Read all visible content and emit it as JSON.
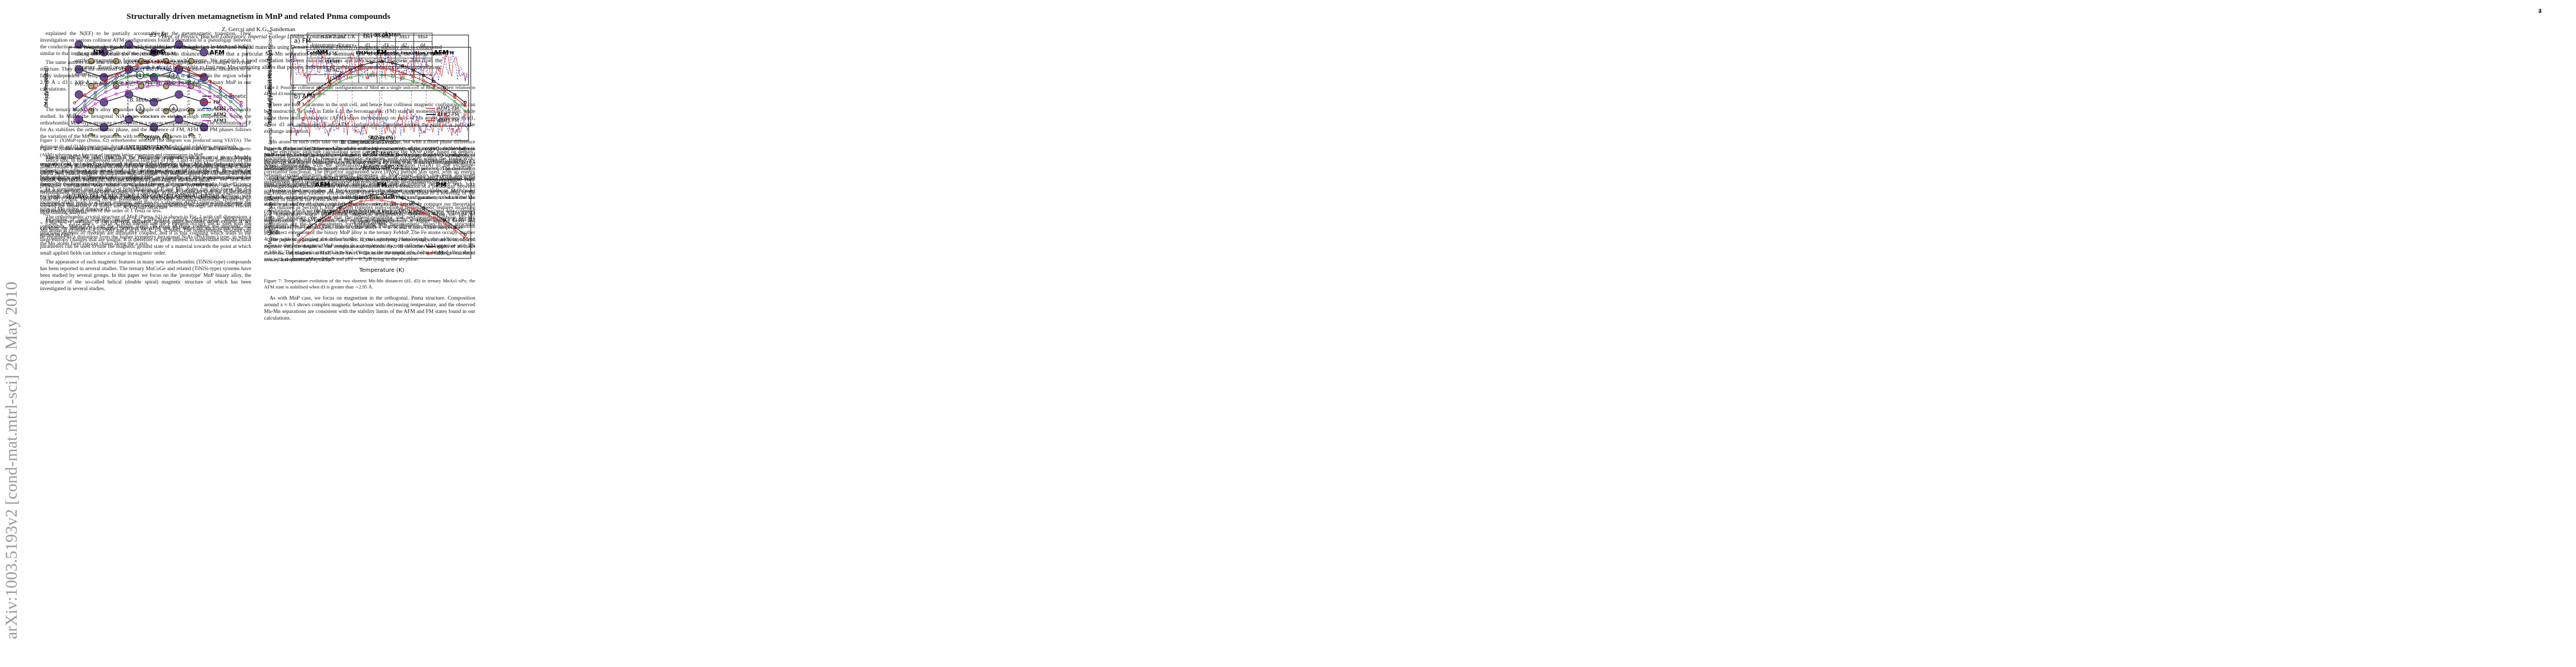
{
  "arxiv_stamp": "arXiv:1003.5193v2 [cond-mat.mtrl-sci] 26 May 2010",
  "front": {
    "title": "Structurally driven metamagnetism in MnP and related Pnma compounds",
    "authors": "Z. Gercsi and K.G. Sandeman",
    "affiliation": "Dept. of Physics, Blackett Laboratory, Imperial College London, London SW7 2AZ UK",
    "abstract": "We investigate the structural conditions for metamagnetism in MnP and related materials using Density Functional Theory. A magnetic stability plot is constructed taking into account the two shortest Mn-Mn distances. We find that a particular Mn-Mn separation plays the dominant role in determining the change from antiferromagnetic to ferromagnetic order in such systems. We establish a good correlation between our calculations and structural and magnetic data from the literature. Based on our approach it should be possible to find new Mn-containing alloys that possess field-induced metamagnetism and associated magnetocaloric effects.",
    "pacs": "PACS numbers: 75.30.Kz,75.30.Et, 71.20.Be, 75.30.Sg"
  },
  "pages": [
    {
      "columns": [
        [
          {
            "section": "I. INTRODUCTION"
          },
          {
            "paragraph": "The magnetocaloric effect (MCE) is the change in temperature of a material in a changing magnetic field, and was first observed in iron by Emil Warburg. It has until now been exploited in paramagnetic salts as a means of cooling below the temperature of liquid Helium. However, the high global warming potential of conventional HFC refrigerants and the increasing demand for energy for cooling are concerns that currently fuel interest in magnetic cooling as a high-efficiency solid-state method of refrigeration close to room temperature. In recent years much of the search for viable room temperature magnetic refrigerants has focused on first order transition metal-rich compounds that possess first order magnetostructural or magnetoelastic phase transitions that can be driven by applied fields of the order of 1 Tesla or less."
          },
          {
            "paragraph": "Examples of such materials include the La(Fe,Si)13 family, Gd5(Si,Ge)4, MnAs-based compounds, MnFe(P,As) and the Heusler alloys. In most of these systems the magnetic and structural degrees of freedom are intimately coupled, and it is this coupling which leads to the large entropy changes that are sought. It is therefore of great interest to understand how structural parameters can be used to tune the magnetic ground state of a material towards the point at which small applied fields can induce a change in magnetic order."
          },
          {
            "paragraph": "The appearance of such magnetic features in many new orthorhombic (TiNiSi-type) compounds has been reported in several studies. The ternary MnCoGe and related (TiNiSi-type) systems have been studied by several groups. In this paper we focus on the 'prototype' MnP binary alloy, the appearance of the so-called helical (double spiral) magnetic structure of which has been investigated in several studies."
          }
        ],
        [
          {
            "paragraph": "Mn atoms in such cells take on the same helical wavevector, but with a fixed phase difference between the pairs. Gribanov and Zavadskii noticed the occurrence of the magnetic double helix in MnP-type phases in the existence of indirect double exchange coupling. Based on an analysis of the energy stability of helimagnetic spin arrangements, Fjellvåg et al. discussed the possibility of a metamagnetic transition in purely carrier localisation with an isotropic pressure. The correlation between crystal structure and magnetic properties in MnP-based alloys has been discussed qualitatively, but a quantitative picture of the relevant exchange interactions is still lacking."
          },
          {
            "paragraph": "Despite extensive studies of the formation of noncollinear magnetic phases in MnP-based materials, no single first-principles study has yet deduced the structural parameters that control the stability of antiferromagnetic and ferromagnetic order. In this article, we compare our theoretical calculations, which we obtain using density functional theory (DFT), with structural data collected from the literature. We show that the nearest-neighbour and next-nearest-neighbour Mn-Mn separations are the key parameters for predicting new metamagnetic alloys in this structural family."
          },
          {
            "paragraph": "The paper is organised as follows: in Sec. II, the underlying Pnma crystal structure is introduced together with the details of our computational methods. Sec. III describes the results of ab-initio electronic calculations on MnP, while Sec. IV discusses the implications of our findings for related ternary and quaternary systems."
          }
        ]
      ]
    },
    {
      "number": "2",
      "columns": [
        [
          {
            "figure": {
              "atom_labels": [
                "1",
                "2",
                "3",
                "4"
              ],
              "colors": [
                "#6b4c9a",
                "#b8a26a"
              ]
            }
          },
          {
            "caption": "Figure 1: (X)MnP-type (Pnma, 62) orthorhombic structure (the diagram was produced using VESTA). The dominant d1 and d3 Mn-interatomic distances are constructed with dashed and solid lines, respectively."
          },
          {
            "paragraph": "based on DFT. We will show that the favourable magnetic structure at a given Mn-Mn separation can be understood through the competition between direct Mn-Mn exchange and the indirect, ligand-mediated interaction. We determine the stability limits of the collinear ferromagnetic and antiferromagnetic configurations as a function of lattice strain, and compare them with the experimentally reported structures of binary and ternary compounds."
          },
          {
            "section": "II. CRYSTAL STRUCTURE AND COMPUTATIONAL DETAILS"
          },
          {
            "subsection": "A. Crystal Structure"
          },
          {
            "paragraph": "The orthorhombic crystal structure of MnP (Pnma, 62) is shown in Fig. 1 with cell dimensions a = 5.268, b = 3.172 and c = 5.918 Å. Both the Mn and the P element occupy the 4c sites with the Mn atoms at (0.0049, 1/4, 0.1965) and P at (0.1878, 1/4, 0.5686). The orthorhombic structure can be regarded as a distortion from the higher symmetry hexagonal NiAs (P63/mmc) type, in which the Mn atoms form zig-zag chains along the a axis."
          }
        ],
        [
          {
            "table": {
              "header": [
                "Base atoms",
                "Mn1",
                "Mn2",
                "Mn3",
                "Mn4"
              ],
              "rows": [
                [
                  "Interatomic distance",
                  "d1",
                  "d3",
                  "d2",
                  "d4"
                ],
                [
                  "FM",
                  "+",
                  "+",
                  "+",
                  "+"
                ],
                [
                  "AFM1",
                  "+",
                  "-",
                  "+",
                  "-"
                ],
                [
                  "AFM2",
                  "+",
                  "+",
                  "-",
                  "-"
                ],
                [
                  "AFM3",
                  "+",
                  "-",
                  "-",
                  "+"
                ]
              ]
            }
          },
          {
            "caption": "Table I: Possible collinear magnetic configurations of Mn4 on a single unit cell of MnP and their relation to d1 and d3 interatomic distances."
          },
          {
            "paragraph": "There are four Mn atoms in the unit cell, and hence four collinear magnetic configurations can be constructed, as listed in Table I. In the ferromagnetic (FM) state all moments are parallel, while in the three antiferromagnetic (AFM) states the moments on pairs of Mn atoms separated by d1, d2 or d3 are antiparallel. Each AFM configuration therefore probes the sign of a particular exchange interaction."
          },
          {
            "subsection": "B. Computational Details"
          },
          {
            "paragraph": "The electronic structure calculations were carried out using the VASP code, based on density-functional theory (DFT). Non-local magnetic moments were calculated within the Vosko-Wilk-Nusair interpolation, with the generalized gradient approximation (GGA) to the exchange-correlation functional. The projector augmented wave (PAW) method was used, with an energy cut-off of 350 eV and a 12x12x12 Monkhorst-Pack k-point mesh. The lattice parameters were varied isotropically while the internal atomic positions were relaxed."
          },
          {
            "section": "III. RESULTS: MnP"
          },
          {
            "paragraph": "As outlined in Section I, MnP exhibits complex non-collinear ferromagnetic features including low temperature screw and conical magnetic arrangements, depending upon the rate of magnetisation. These transform into collinear ferromagnetism at higher applied fields and temperatures. The ferromagnetic state is stable above T ≈ 47 K and it has a Curie temperature"
          }
        ]
      ]
    },
    {
      "number": "3",
      "columns": [
        [
          {
            "figure": {
              "top_labels": [
                "NM",
                "FM",
                "AFM"
              ],
              "xlabel": "Strain (%)",
              "ylabel": "Energy (meV/f.u.)",
              "top_axis": "d3 (Å)",
              "legend": [
                "non-magnetic",
                "FM",
                "AFM1",
                "AFM2",
                "AFM3"
              ],
              "colors": [
                "#000000",
                "#e0201b",
                "#1f3fd6",
                "#2aa02a",
                "#c02cc0"
              ]
            }
          },
          {
            "caption": "Figure 2: (Color online) Total energy of non-magnetic (NM), ferromagnetic (FM) and antiferromagnetic (AFM) solutions as a function of isotropic lattice expansion and compression in MnP."
          },
          {
            "paragraph": "of Tc = 290 K. Such peculiar non-collinear magnetism has been explained using spin wave theory and was attributed to the influence of magnetocrystalline anisotropy. There have been several theoretical studies of both the magnetism and crystal structure of MnP. The first first-principles calculations were based on augmented plane wave (APW) theory and reported ferromagnetic ground state with moment of 1.3μB/Mn, in good agreement with the experimental value of 1.29μB. Focusing on the possibility of NiAs-MnP structural transition, Tremel et al. showed the importance of direct and indirect metal-metal bonding through an extended Hückel tight-binding analysis."
          },
          {
            "paragraph": "The relative stability of the different magnetic ground states becomes more evident if we calculate the difference in energies between the AFM and FM states for each strain value, as shown in Fig. 3."
          }
        ],
        [
          {
            "figure": {
              "top_labels": [
                "NM",
                "FM",
                "AFM"
              ],
              "xlabel": "Strain (%)",
              "ylabel": "Total energy difference (eV/f.u.)",
              "top_axis": "d3 (Å)",
              "legend": [
                "AFM1-FM",
                "AFM2-FM",
                "AFM3-FM"
              ],
              "colors": [
                "#e0201b",
                "#1f3fd6",
                "#2aa02a"
              ]
            }
          },
          {
            "caption": "Figure 3: (Color online) Difference between the total energies of antiferromagnetic (AFM) and ferromagnetic (FM) solutions in MnP as a function of d3 and ε, the two shortest Mn-Mn separations. AFM configurations become stable when ΔE(AFM−FM) < 0. The vertical dashed line represents the experimental (strain-free, ε = 0) Mn-separation values."
          },
          {
            "paragraph": "tonged oscillations in a function of isotropic lattice strain. As can be seen, the FM solution is the most stable around the experimental lattice volume, and its stability decreases with both compression and expansion. At large compression the magnetic moments collapse and a non-magnetic solution is recovered, while under expansion the AFM3 configuration, in which the Mn atoms separated by d3 align antiparallel, becomes energetically favoured."
          },
          {
            "paragraph": "The relative stability of the different magnetic ground states is summarised in Fig. 3. The AFM3 solution crosses the FM solution at a strain of approximately 1.7%, corresponding to a d3 Mn-Mn separation close to 2.8 Å. This crossover represents a structurally driven metamagnetic transition in MnP."
          }
        ]
      ]
    },
    {
      "number": "4",
      "columns": [
        [
          {
            "figure": {
              "top_labels": [
                "MnP"
              ],
              "xlabel": "Strain (%)",
              "ylabel": "M (μB/Mn atom)",
              "legend": [
                "FM",
                "AFM1",
                "AFM2",
                "AFM3"
              ],
              "colors": [
                "#e0201b",
                "#1f3fd6",
                "#2aa02a",
                "#c02cc0"
              ]
            }
          },
          {
            "caption": "Figure 4: (Color online) Mn magnetic moment vs. strain for different magnetic states in MnP (see Table I)."
          },
          {
            "paragraph": "lattice size. In the compressed lattice region (left part of Fig. 3 and 4) the close proximity of Mn atoms causes a more extended overlap of the d states and leads to the broadening of the d-band, which then cannot support spontaneous magnetisation. The magnetisation per Mn atom increases steadily with lattice expansion, as expected from a narrowing of the Mn d-band."
          },
          {
            "paragraph": "In a compressed unit cell the p-d hybridization of P and Mn atoms can also lower the d-d exchange interaction, making any magnetic moments. An enhanced exchange splitting with increased strain leads to a larger moment, and thus to a stronger AFM3 interaction between the pairs of Mn atoms at distance d3."
          }
        ],
        [
          {
            "figure": {
              "panels": [
                "a) FM",
                "b) AFM"
              ],
              "xlabel": "E-EF (eV)",
              "ylabel": "Density of states (states/eV/f.u.)",
              "colors": [
                "#e0201b",
                "#1f3fd6"
              ]
            }
          },
          {
            "caption": "Figure 5: (Color online) Density of states for binary MnP at the Fermi level in the (a) ferromagnetic and (b) antiferromagnetic (AFM3) configurations at lattice expansion of ε = 0 (solid line) and ε = 0.05 (dashed line)."
          },
          {
            "paragraph": "exploited the (Fe,Co)MnP alloy to partially accomodate for the metamagnetic transition. Their investigation on various collinear AFM configurations found a formation of a 'pseudogap' between the conduction and valence electron bands with Co addition, which leads to a lowering of the density of states at the Fermi level."
          },
          {
            "section": "IV. IMPLICATIONS FOR XMnP AND MnPxZ"
          },
          {
            "subsection": "A. (Fe,Co)MnP"
          },
          {
            "paragraph": "A direct extension of the binary MnP alloy is the ternary FeMnP. The Fe atoms occupy another 4c site without changing the orthorhombic crystal symmetry. Interestingly, the addition of Iron atoms to the ferromagnetic MnP results in a complementary non-collinear AFM structure with TN = 340 K. The magnetic unit cell is twice as large as the structural one, being doubled along the c-axis with moments μMn = 2.6μB and μFe = 0.7μB lying in the ab-plane."
          }
        ]
      ]
    },
    {
      "number": "5",
      "columns": [
        [
          {
            "paragraph": "explained the N(EF) to be partially accountable for the metamagnetic transition. Their investigation on various collinear AFM configurations found a formation of a 'pseudogap' between the conduction and valence electron bands with Co addition, which leads to a lowering of N(EF) similar to that in the strained MnP alloy of the previous Section."
          },
          {
            "paragraph": "The same authors have also tried to associate the observed magnetic states to changes in crystal structure. They found the measured Mn-(Fe,Co) and (Fe,Co)-(Fe,Co) inter-atomic distances to be fairly independent of temperature. The metamagnetic transition is observed in the region where 2.90 Å ≤ d3 ≤ 2.95 Å, in accordance with the stability limits found for the binary MnP in our calculations."
          },
          {
            "subsection": "B. MnAs1-xPx"
          },
          {
            "paragraph": "The ternary MnAs1-xPx alloy is another example of metamagnetism and has been extensively studied. In MnAs the hexagonal NiAs-type structure is stable at high temperature, while the orthorhombic MnP-type structure is observed in a narrow temperature range. The substitution of P for As stabilises the orthorhombic phase, and the sequence of FM, AFM and PM phases follows the variation of the Mn-Mn separation with temperature, as shown in Fig. 7."
          }
        ],
        [
          {
            "figure": {
              "top_labels": [
                "CoMnP",
                "FM",
                "Metamagnetic transition regime",
                "AFM"
              ],
              "xlabel": "RZ (pm)",
              "ylabel": "Nearest and second nearest Mn-Mn separation (Å)",
              "top_axis": "Fe1-xCoxMnP",
              "legend": [
                "d1",
                "d3"
              ],
              "colors": [
                "#000000",
                "#e0201b"
              ]
            }
          },
          {
            "caption": "Figure 6: (Color online) Experimentally observed Mn-Mn distances (d1, d3) in ternary Fe1-xCoxMnP as a function of the Z atomic radius. The metamagnetic transition regime found in our calculations is indicated."
          },
          {
            "figure": {
              "top_labels": [
                "AFM",
                "FM",
                "PM"
              ],
              "xlabel": "Temperature (K)",
              "ylabel": "Mn-Mn separation (Å)",
              "top_axis": "MnAs0.88P0.12",
              "legend": [
                "d1",
                "d3"
              ],
              "colors": [
                "#000000",
                "#e0201b"
              ]
            }
          },
          {
            "caption": "Figure 7: Temperature evolution of the two shortest Mn-Mn distances (d1, d3) in ternary MnAs1-xPx; the AFM state is stabilised when d3 is greater than ∼2.95 Å."
          },
          {
            "paragraph": "As with MnP case, we focus on magnetism in the orthogonal, Pnma structure. Composition around x ≈ 0.1 shows complex magnetic behaviour with decreasing temperature, and the observed Mn-Mn separations are consistent with the stability limits of the AFM and FM states found in our calculations."
          }
        ]
      ]
    }
  ]
}
